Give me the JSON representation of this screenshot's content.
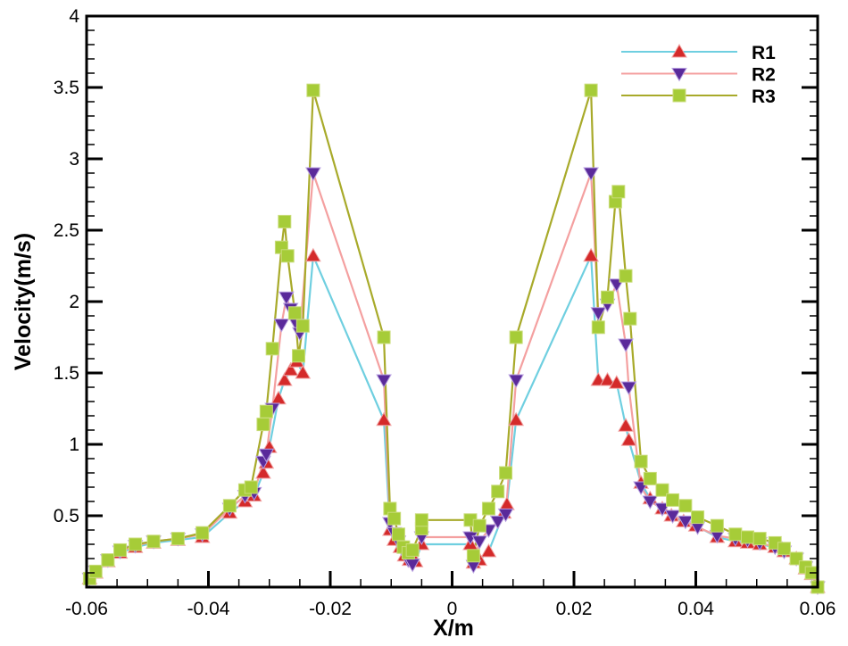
{
  "chart_data": {
    "type": "line",
    "title": "",
    "xlabel": "X/m",
    "ylabel": "Velocity(m/s)",
    "xlim": [
      -0.06,
      0.06
    ],
    "ylim": [
      0,
      4
    ],
    "xticks": [
      "-0.06",
      "-0.04",
      "-0.02",
      "0",
      "0.02",
      "0.04",
      "0.06"
    ],
    "yticks": [
      "0.5",
      "1",
      "1.5",
      "2",
      "2.5",
      "3",
      "3.5",
      "4"
    ],
    "grid": false,
    "legend_position": "top-right",
    "series": [
      {
        "name": "R1",
        "line_color": "#6fcfe0",
        "marker_color": "#d42a2a",
        "marker": "triangle-up",
        "x": [
          -0.0595,
          -0.0585,
          -0.0565,
          -0.0545,
          -0.052,
          -0.049,
          -0.045,
          -0.041,
          -0.0365,
          -0.034,
          -0.0325,
          -0.031,
          -0.0305,
          -0.03,
          -0.0285,
          -0.0275,
          -0.0265,
          -0.0255,
          -0.0245,
          -0.0228,
          -0.0112,
          -0.0102,
          -0.0095,
          -0.0085,
          -0.0078,
          -0.007,
          -0.006,
          -0.005,
          0.003,
          0.0035,
          0.0045,
          0.006,
          0.0085,
          0.009,
          0.0105,
          0.0228,
          0.024,
          0.0255,
          0.027,
          0.0285,
          0.029,
          0.031,
          0.0325,
          0.0345,
          0.036,
          0.038,
          0.04,
          0.0435,
          0.0465,
          0.0485,
          0.0505,
          0.053,
          0.0545,
          0.0565,
          0.058,
          0.059,
          0.06
        ],
        "y": [
          0.06,
          0.1,
          0.18,
          0.24,
          0.28,
          0.31,
          0.33,
          0.35,
          0.52,
          0.6,
          0.64,
          0.8,
          0.87,
          0.98,
          1.32,
          1.45,
          1.52,
          1.58,
          1.5,
          2.32,
          1.17,
          0.4,
          0.33,
          0.28,
          0.22,
          0.19,
          0.18,
          0.3,
          0.3,
          0.17,
          0.19,
          0.25,
          0.52,
          0.58,
          1.17,
          2.32,
          1.45,
          1.45,
          1.43,
          1.13,
          1.03,
          0.73,
          0.62,
          0.55,
          0.5,
          0.46,
          0.43,
          0.35,
          0.32,
          0.31,
          0.3,
          0.28,
          0.25,
          0.2,
          0.13,
          0.09,
          0.0
        ]
      },
      {
        "name": "R2",
        "line_color": "#f4a0a0",
        "marker_color": "#5a2a9a",
        "marker": "triangle-down",
        "x": [
          -0.0595,
          -0.0585,
          -0.0565,
          -0.0545,
          -0.052,
          -0.049,
          -0.045,
          -0.041,
          -0.0365,
          -0.034,
          -0.0325,
          -0.031,
          -0.0305,
          -0.0295,
          -0.028,
          -0.0272,
          -0.0265,
          -0.0255,
          -0.025,
          -0.0228,
          -0.0112,
          -0.0102,
          -0.0095,
          -0.0088,
          -0.008,
          -0.0072,
          -0.0065,
          -0.005,
          0.003,
          0.0035,
          0.0045,
          0.006,
          0.0075,
          0.0088,
          0.0105,
          0.0228,
          0.024,
          0.0255,
          0.027,
          0.0285,
          0.029,
          0.031,
          0.0325,
          0.0345,
          0.0362,
          0.0383,
          0.0403,
          0.0435,
          0.0465,
          0.0485,
          0.0505,
          0.053,
          0.0545,
          0.0565,
          0.058,
          0.059,
          0.06
        ],
        "y": [
          0.06,
          0.11,
          0.19,
          0.25,
          0.29,
          0.32,
          0.34,
          0.37,
          0.55,
          0.64,
          0.66,
          0.88,
          0.93,
          1.25,
          1.84,
          2.03,
          1.95,
          1.84,
          1.78,
          2.9,
          1.45,
          0.45,
          0.38,
          0.32,
          0.25,
          0.19,
          0.16,
          0.35,
          0.35,
          0.15,
          0.32,
          0.4,
          0.46,
          0.51,
          1.45,
          2.9,
          1.92,
          1.98,
          2.12,
          1.7,
          1.4,
          0.7,
          0.6,
          0.55,
          0.5,
          0.46,
          0.42,
          0.36,
          0.34,
          0.33,
          0.31,
          0.28,
          0.25,
          0.2,
          0.14,
          0.1,
          0.0
        ]
      },
      {
        "name": "R3",
        "line_color": "#a8aa2a",
        "marker_color": "#a6cc38",
        "marker": "square",
        "x": [
          -0.0595,
          -0.0585,
          -0.0565,
          -0.0545,
          -0.052,
          -0.049,
          -0.045,
          -0.041,
          -0.0365,
          -0.034,
          -0.033,
          -0.031,
          -0.0305,
          -0.0295,
          -0.028,
          -0.0275,
          -0.027,
          -0.0258,
          -0.0252,
          -0.0245,
          -0.0228,
          -0.0112,
          -0.0102,
          -0.0095,
          -0.0088,
          -0.008,
          -0.0072,
          -0.0065,
          -0.005,
          -0.005,
          0.003,
          0.0035,
          0.0045,
          0.006,
          0.0075,
          0.0088,
          0.0105,
          0.0228,
          0.024,
          0.0255,
          0.0268,
          0.0273,
          0.0285,
          0.0292,
          0.031,
          0.0325,
          0.0345,
          0.0362,
          0.0383,
          0.0403,
          0.0435,
          0.0465,
          0.0485,
          0.0505,
          0.053,
          0.0545,
          0.0565,
          0.058,
          0.059,
          0.06
        ],
        "y": [
          0.06,
          0.11,
          0.19,
          0.26,
          0.3,
          0.32,
          0.34,
          0.38,
          0.57,
          0.68,
          0.7,
          1.14,
          1.23,
          1.67,
          2.38,
          2.56,
          2.32,
          1.92,
          1.62,
          1.83,
          3.48,
          1.75,
          0.55,
          0.48,
          0.37,
          0.28,
          0.24,
          0.26,
          0.41,
          0.47,
          0.47,
          0.22,
          0.43,
          0.55,
          0.67,
          0.8,
          1.75,
          3.48,
          1.82,
          2.03,
          2.7,
          2.77,
          2.18,
          1.88,
          0.88,
          0.76,
          0.68,
          0.61,
          0.57,
          0.49,
          0.43,
          0.37,
          0.35,
          0.34,
          0.31,
          0.27,
          0.2,
          0.14,
          0.1,
          0.0
        ]
      }
    ]
  }
}
